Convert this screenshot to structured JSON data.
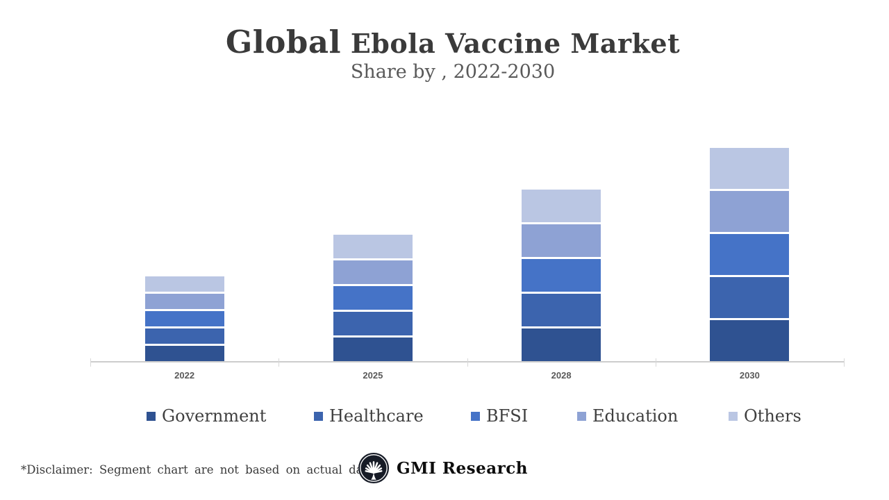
{
  "header": {
    "title_lead": "Global",
    "title_rest": "Ebola Vaccine Market",
    "subtitle": "Share by , 2022-2030"
  },
  "chart_data": {
    "type": "bar",
    "stacked": true,
    "title": "Global Ebola Vaccine Market",
    "subtitle": "Share by , 2022-2030",
    "categories": [
      "2022",
      "2025",
      "2028",
      "2030"
    ],
    "series": [
      {
        "name": "Government",
        "color": "#2F5291",
        "values": [
          22,
          34,
          47,
          59
        ]
      },
      {
        "name": "Healthcare",
        "color": "#3C64AE",
        "values": [
          22,
          34,
          47,
          59
        ]
      },
      {
        "name": "BFSI",
        "color": "#4573C7",
        "values": [
          22,
          34,
          47,
          59
        ]
      },
      {
        "name": "Education",
        "color": "#8EA2D4",
        "values": [
          22,
          34,
          47,
          59
        ]
      },
      {
        "name": "Others",
        "color": "#BAC6E3",
        "values": [
          22,
          34,
          47,
          59
        ]
      }
    ],
    "xlabel": "",
    "ylabel": "",
    "value_axis_visible": false,
    "gridlines": false,
    "legend_position": "bottom",
    "stack_order_bottom_to_top": [
      "Government",
      "Healthcare",
      "BFSI",
      "Education",
      "Others"
    ],
    "note": "Segments are equal within each year; values are relative units (slide states chart is not based on actual data)"
  },
  "footer": {
    "disclaimer": "*Disclaimer:  Segment chart are not based on actual data",
    "brand": "GMI Research"
  }
}
